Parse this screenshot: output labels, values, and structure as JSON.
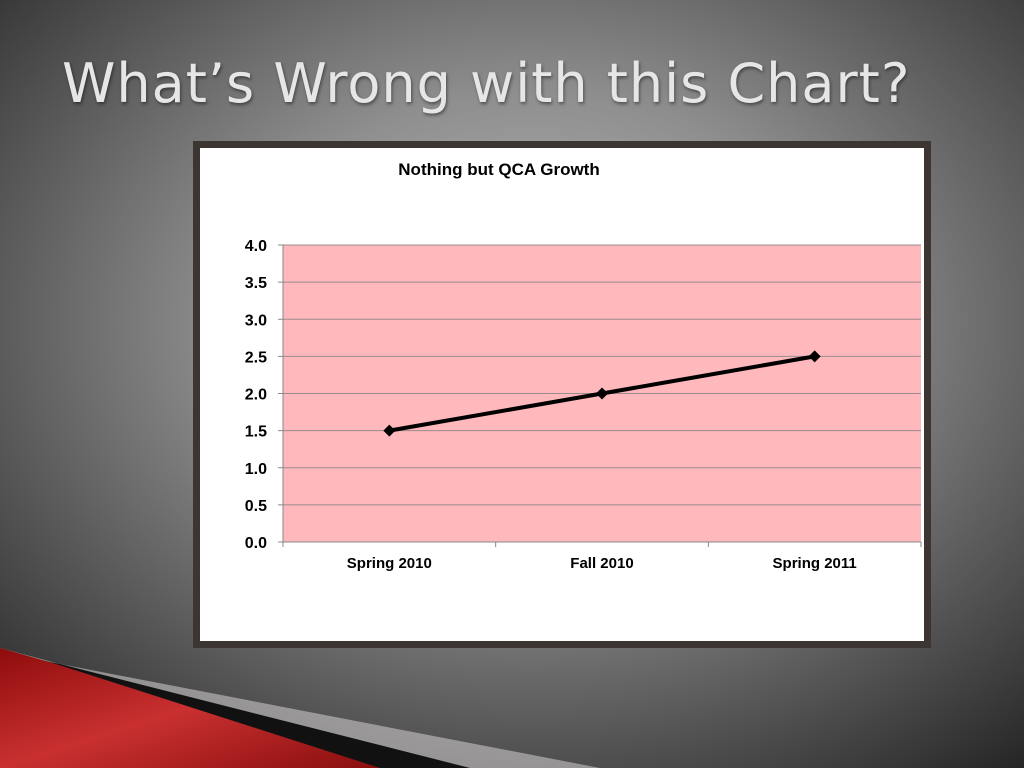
{
  "slide": {
    "title": "What’s Wrong with this Chart?"
  },
  "colors": {
    "plot_background": "#ffb8bb",
    "line": "#000000",
    "frame": "#3d3532",
    "accent_red": "#b01818"
  },
  "chart_data": {
    "type": "line",
    "title": "Nothing but QCA Growth",
    "categories": [
      "Spring 2010",
      "Fall 2010",
      "Spring 2011"
    ],
    "series": [
      {
        "values": [
          1.5,
          2.0,
          2.5
        ]
      }
    ],
    "xlabel": "",
    "ylabel": "",
    "ylim": [
      0,
      4
    ],
    "yticks": [
      "0.0",
      "0.5",
      "1.0",
      "1.5",
      "2.0",
      "2.5",
      "3.0",
      "3.5",
      "4.0"
    ],
    "grid": true,
    "marker": "diamond",
    "legend": "none"
  }
}
